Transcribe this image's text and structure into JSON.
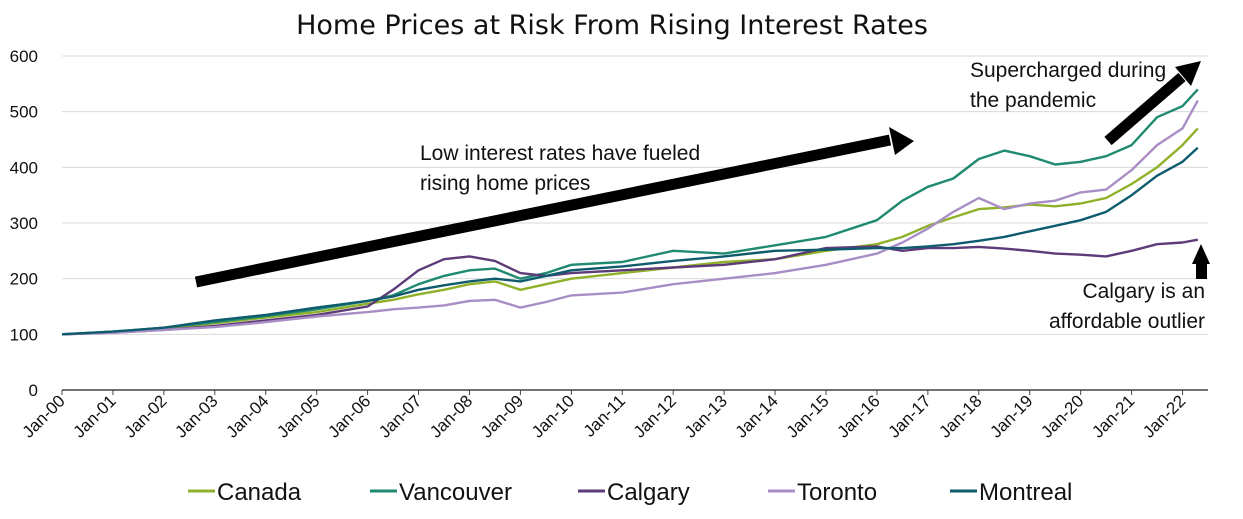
{
  "chart_data": {
    "type": "line",
    "title": "Home Prices at Risk From Rising Interest Rates",
    "xlabel": "",
    "ylabel": "",
    "ylim": [
      0,
      600
    ],
    "yticks": [
      "0",
      "100",
      "200",
      "300",
      "400",
      "500",
      "600"
    ],
    "xticks": [
      "Jan-00",
      "Jan-01",
      "Jan-02",
      "Jan-03",
      "Jan-04",
      "Jan-05",
      "Jan-06",
      "Jan-07",
      "Jan-08",
      "Jan-09",
      "Jan-10",
      "Jan-11",
      "Jan-12",
      "Jan-13",
      "Jan-14",
      "Jan-15",
      "Jan-16",
      "Jan-17",
      "Jan-18",
      "Jan-19",
      "Jan-20",
      "Jan-21",
      "Jan-22"
    ],
    "x": [
      2000,
      2001,
      2002,
      2003,
      2004,
      2005,
      2006,
      2006.5,
      2007,
      2007.5,
      2008,
      2008.5,
      2009,
      2009.5,
      2010,
      2011,
      2012,
      2013,
      2014,
      2015,
      2016,
      2016.5,
      2017,
      2017.5,
      2018,
      2018.5,
      2019,
      2019.5,
      2020,
      2020.5,
      2021,
      2021.5,
      2022,
      2022.3
    ],
    "x_end": 2022.5,
    "grid": true,
    "legend_position": "bottom",
    "series": [
      {
        "name": "Canada",
        "color": "#8fb12a",
        "values": [
          100,
          104,
          110,
          120,
          130,
          140,
          155,
          162,
          172,
          180,
          190,
          195,
          180,
          190,
          200,
          210,
          220,
          230,
          235,
          250,
          262,
          275,
          295,
          310,
          325,
          328,
          333,
          330,
          335,
          345,
          370,
          400,
          440,
          470
        ]
      },
      {
        "name": "Vancouver",
        "color": "#1f8a70",
        "values": [
          100,
          105,
          112,
          122,
          133,
          145,
          160,
          170,
          190,
          205,
          215,
          218,
          200,
          210,
          225,
          230,
          250,
          245,
          260,
          275,
          305,
          340,
          365,
          380,
          415,
          430,
          420,
          405,
          410,
          420,
          440,
          490,
          510,
          540
        ]
      },
      {
        "name": "Calgary",
        "color": "#5d3a78",
        "values": [
          100,
          103,
          108,
          115,
          125,
          135,
          150,
          180,
          215,
          235,
          240,
          232,
          210,
          205,
          210,
          215,
          220,
          225,
          235,
          255,
          258,
          250,
          255,
          255,
          257,
          254,
          250,
          245,
          243,
          240,
          250,
          262,
          265,
          270
        ]
      },
      {
        "name": "Toronto",
        "color": "#a98ec5",
        "values": [
          100,
          103,
          108,
          113,
          122,
          132,
          140,
          145,
          148,
          152,
          160,
          162,
          148,
          158,
          170,
          175,
          190,
          200,
          210,
          225,
          245,
          265,
          290,
          320,
          345,
          325,
          335,
          340,
          355,
          360,
          395,
          440,
          470,
          520
        ]
      },
      {
        "name": "Montreal",
        "color": "#0f5b6e",
        "values": [
          100,
          105,
          112,
          125,
          135,
          148,
          160,
          168,
          180,
          188,
          195,
          200,
          195,
          205,
          215,
          222,
          232,
          240,
          250,
          252,
          255,
          255,
          258,
          262,
          268,
          275,
          285,
          295,
          305,
          320,
          350,
          385,
          410,
          435
        ]
      }
    ],
    "annotations": [
      {
        "line1": "Low interest rates have fueled",
        "line2": "rising home prices"
      },
      {
        "line1": "Supercharged during",
        "line2": "the pandemic"
      },
      {
        "line1": "Calgary is an",
        "line2": "affordable outlier"
      }
    ]
  }
}
